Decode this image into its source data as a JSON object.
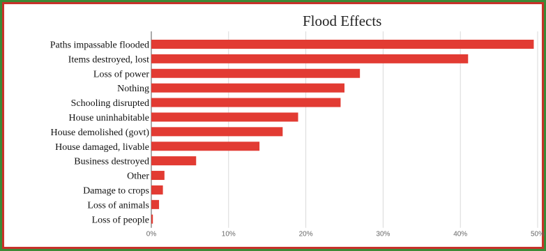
{
  "chart_data": {
    "type": "bar",
    "orientation": "horizontal",
    "title": "Flood Effects",
    "categories": [
      "Paths impassable flooded",
      "Items destroyed, lost",
      "Loss of power",
      "Nothing",
      "Schooling disrupted",
      "House uninhabitable",
      "House demolished (govt)",
      "House damaged, livable",
      "Business destroyed",
      "Other",
      "Damage to crops",
      "Loss of animals",
      "Loss of people"
    ],
    "values": [
      49.5,
      41,
      27,
      25,
      24.5,
      19,
      17,
      14,
      5.8,
      1.7,
      1.5,
      1.0,
      0.2
    ],
    "xlim": [
      0,
      50
    ],
    "xticks": [
      "0%",
      "10%",
      "20%",
      "30%",
      "40%",
      "50%"
    ],
    "grid": true,
    "colors": {
      "bar": "#e23b33",
      "grid": "#d9d9d9",
      "frame": "#c8312a",
      "outer": "#3c8a36"
    }
  }
}
